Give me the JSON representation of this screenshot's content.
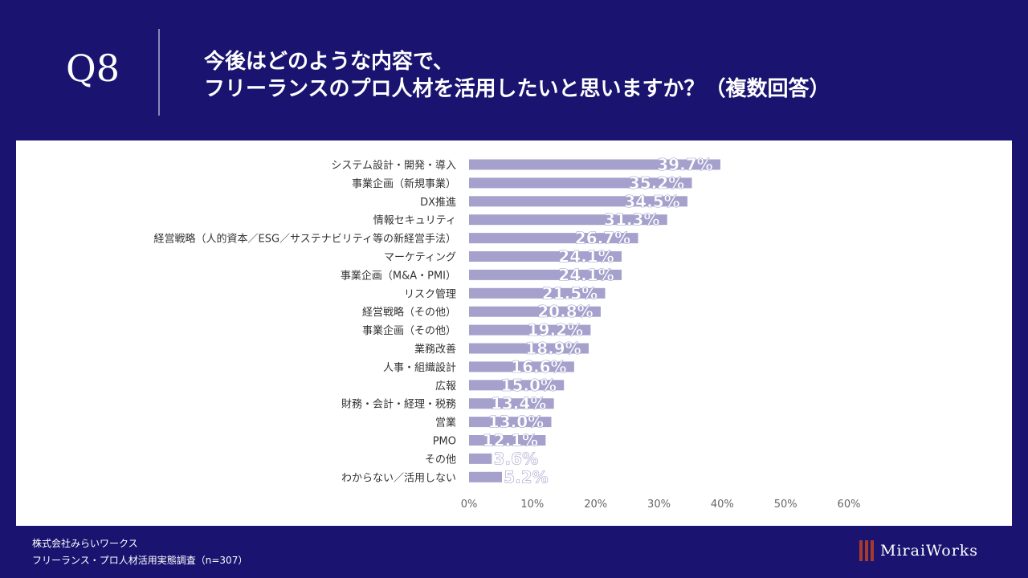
{
  "header": {
    "question_number": "Q8",
    "title_line1": "今後はどのような内容で、",
    "title_line2": "フリーランスのプロ人材を活用したいと思いますか？（複数回答）"
  },
  "colors": {
    "background": "#1a1470",
    "bar": "#a5a1cc",
    "panel": "#ffffff",
    "logo_mark": "#a83a2d"
  },
  "chart_data": {
    "type": "bar",
    "orientation": "horizontal",
    "categories": [
      "システム設計・開発・導入",
      "事業企画（新規事業）",
      "DX推進",
      "情報セキュリティ",
      "経営戦略（人的資本／ESG／サステナビリティ等の新経営手法）",
      "マーケティング",
      "事業企画（M&A・PMI）",
      "リスク管理",
      "経営戦略（その他）",
      "事業企画（その他）",
      "業務改善",
      "人事・組織設計",
      "広報",
      "財務・会計・経理・税務",
      "営業",
      "PMO",
      "その他",
      "わからない／活用しない"
    ],
    "values": [
      39.7,
      35.2,
      34.5,
      31.3,
      26.7,
      24.1,
      24.1,
      21.5,
      20.8,
      19.2,
      18.9,
      16.6,
      15.0,
      13.4,
      13.0,
      12.1,
      3.6,
      5.2
    ],
    "value_labels": [
      "39.7%",
      "35.2%",
      "34.5%",
      "31.3%",
      "26.7%",
      "24.1%",
      "24.1%",
      "21.5%",
      "20.8%",
      "19.2%",
      "18.9%",
      "16.6%",
      "15.0%",
      "13.4%",
      "13.0%",
      "12.1%",
      "3.6%",
      "5.2%"
    ],
    "xlim": [
      0,
      60
    ],
    "xticks": [
      0,
      10,
      20,
      30,
      40,
      50,
      60
    ],
    "xtick_labels": [
      "0%",
      "10%",
      "20%",
      "30%",
      "40%",
      "50%",
      "60%"
    ],
    "grid": false
  },
  "footer": {
    "company": "株式会社みらいワークス",
    "survey": "フリーランス・プロ人材活用実態調査（n=307）"
  },
  "logo": {
    "text": "MiraiWorks"
  }
}
